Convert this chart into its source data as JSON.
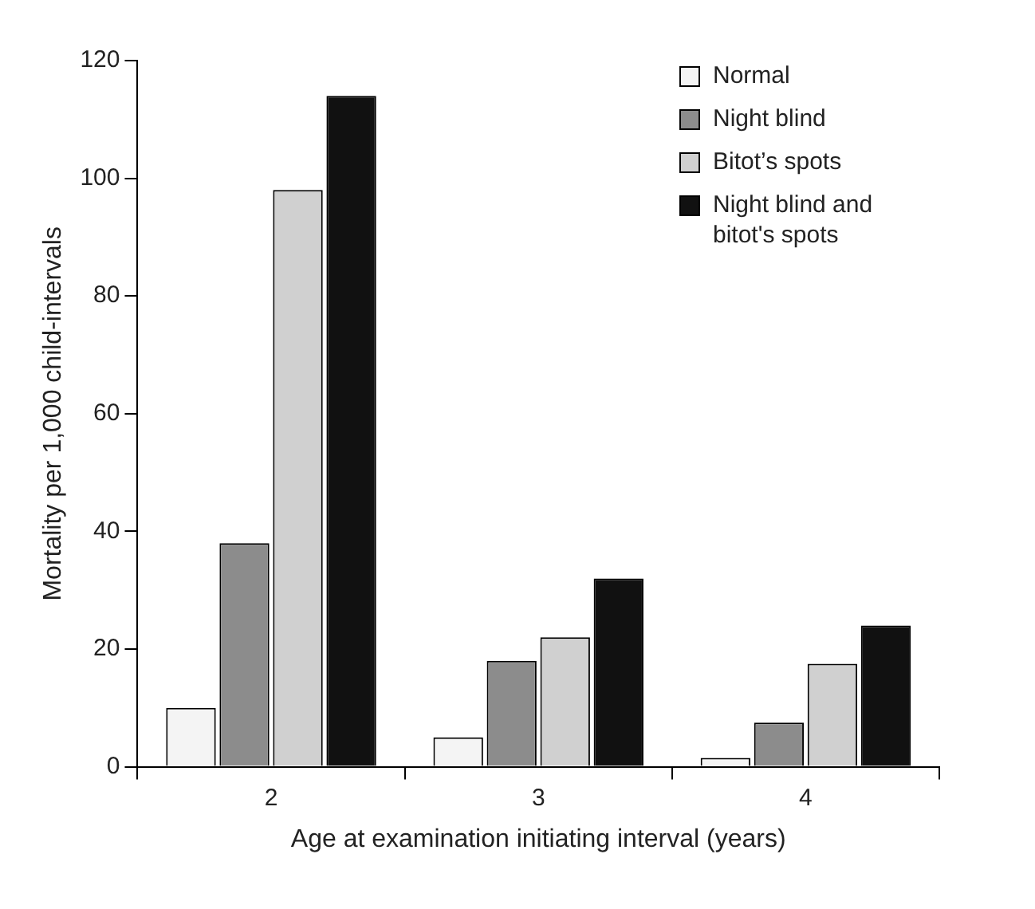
{
  "chart_data": {
    "type": "bar",
    "xlabel": "Age at examination initiating interval (years)",
    "ylabel": "Mortality per 1,000 child-intervals",
    "categories": [
      "2",
      "3",
      "4"
    ],
    "series": [
      {
        "name": "Normal",
        "color": "#f4f4f4",
        "values": [
          10,
          5,
          1.5
        ]
      },
      {
        "name": "Night blind",
        "color": "#8c8c8c",
        "values": [
          38,
          18,
          7.5
        ]
      },
      {
        "name": "Bitot’s spots",
        "color": "#d0d0d0",
        "values": [
          98,
          22,
          17.5
        ]
      },
      {
        "name": "Night blind and bitot's spots",
        "color": "#111111",
        "values": [
          114,
          32,
          24
        ]
      }
    ],
    "ylim": [
      0,
      120
    ],
    "yticks": [
      0,
      20,
      40,
      60,
      80,
      100,
      120
    ],
    "grid": false,
    "legend": "top right"
  }
}
